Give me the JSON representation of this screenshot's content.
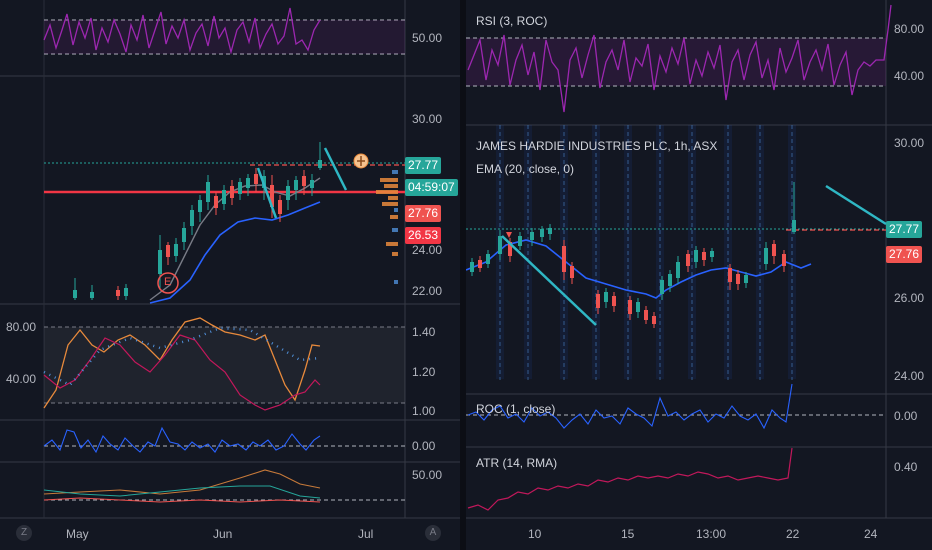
{
  "left_chart": {
    "rsi_axis": [
      "50.00"
    ],
    "price_axis": [
      "30.00",
      "24.00",
      "22.00"
    ],
    "price_tags": {
      "last": "27.77",
      "countdown": "04:59:07",
      "bid": "27.76",
      "level": "26.53"
    },
    "osc_axis_left": [
      "80.00",
      "40.00"
    ],
    "osc_axis_right": [
      "1.40",
      "1.20",
      "1.00"
    ],
    "roc_axis": [
      "0.00"
    ],
    "atr_axis": [
      "50.00"
    ],
    "x_axis": [
      "May",
      "Jun",
      "Jul"
    ],
    "earnings_marker": "E",
    "buttons": {
      "left": "Z",
      "right": "A"
    }
  },
  "right_chart": {
    "rsi": {
      "label": "RSI (3, ROC)",
      "axis": [
        "80.00",
        "40.00"
      ]
    },
    "main": {
      "title": "JAMES HARDIE INDUSTRIES PLC, 1h, ASX",
      "ema_label": "EMA (20, close, 0)",
      "axis": [
        "30.00",
        "26.00",
        "24.00"
      ],
      "price_tags": {
        "last": "27.77",
        "bid": "27.76"
      }
    },
    "roc": {
      "label": "ROC (1, close)",
      "axis": [
        "0.00"
      ]
    },
    "atr": {
      "label": "ATR (14, RMA)",
      "axis": [
        "0.40"
      ]
    },
    "x_axis": [
      "10",
      "15",
      "13:00",
      "22",
      "24"
    ]
  },
  "colors": {
    "background": "#131722",
    "up": "#26a69a",
    "down": "#ef5350",
    "ema": "#2962ff",
    "rsi": "#9c27b0",
    "support_line": "#f23645",
    "trend_line": "#2fb7c4"
  }
}
